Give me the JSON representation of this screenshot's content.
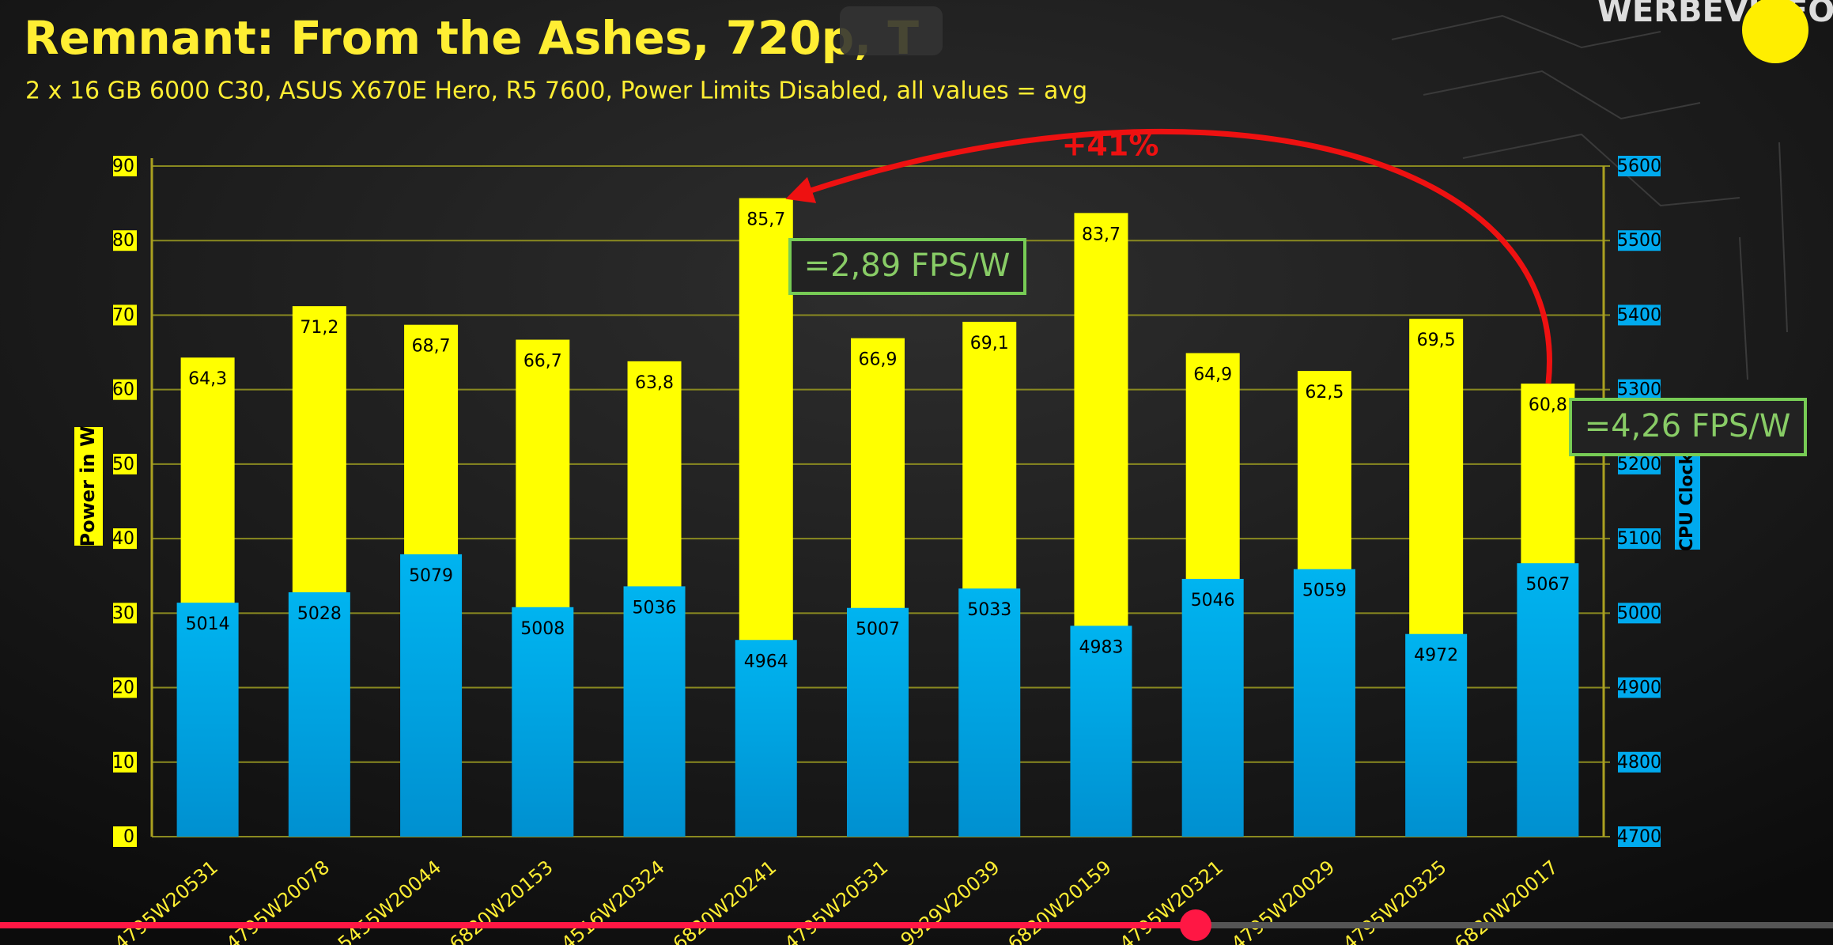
{
  "chart_data": {
    "type": "bar",
    "title": "Remnant: From the Ashes, 720p, T",
    "subtitle": "2 x 16 GB 6000 C30, ASUS X670E Hero,  R5 7600, Power Limits Disabled, all values = avg",
    "watermark": "WERBEVIDEO",
    "y_label": "Power in W",
    "y2_label": "CPU Clock",
    "categories": [
      "4795W20531",
      "4795W20078",
      "5455W20044",
      "6820W20153",
      "4516W20324",
      "6820W20241",
      "4795W20531",
      "9929V20039",
      "6820W20159",
      "4795W20321",
      "4795W20029",
      "4795W20325",
      "6820W20017"
    ],
    "series": [
      {
        "name": "Power in W",
        "color": "#ffff00",
        "values": [
          64.3,
          71.2,
          68.7,
          66.7,
          63.8,
          85.7,
          66.9,
          69.1,
          83.7,
          64.9,
          62.5,
          69.5,
          60.8
        ],
        "value_labels": [
          "64,3",
          "71,2",
          "68,7",
          "66,7",
          "63,8",
          "85,7",
          "66,9",
          "69,1",
          "83,7",
          "64,9",
          "62,5",
          "69,5",
          "60,8"
        ]
      },
      {
        "name": "CPU Clock",
        "color": "#00aaee",
        "axis": "y2",
        "values": [
          5014,
          5028,
          5079,
          5008,
          5036,
          4964,
          5007,
          5033,
          4983,
          5046,
          5059,
          4972,
          5067
        ]
      }
    ],
    "ylim": [
      0,
      90
    ],
    "yticks": [
      0,
      10,
      20,
      30,
      40,
      50,
      60,
      70,
      80,
      90
    ],
    "y2lim": [
      4700,
      5600
    ],
    "y2ticks": [
      4700,
      4800,
      4900,
      5000,
      5100,
      5200,
      5300,
      5400,
      5500,
      5600
    ],
    "grid": true,
    "annotations": [
      "+41%",
      "=2,89 FPS/W",
      "=4,26 FPS/W"
    ]
  }
}
